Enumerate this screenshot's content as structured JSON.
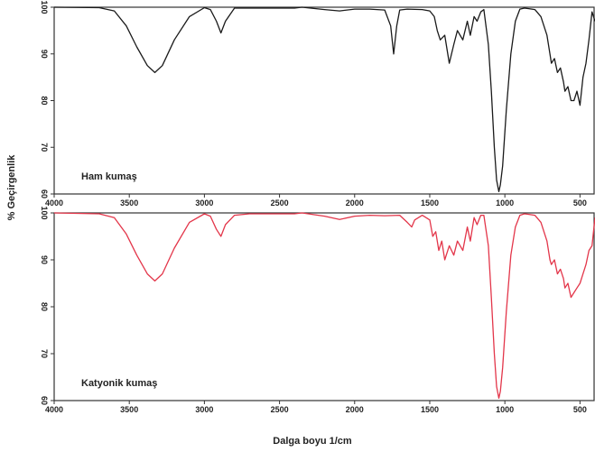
{
  "chart_data": [
    {
      "type": "line",
      "label": "Ham kumaş",
      "color": "#1a1a1a",
      "xlim": [
        4000,
        400
      ],
      "ylim": [
        60,
        100
      ],
      "x_ticks": [
        4000,
        3500,
        3000,
        2500,
        2000,
        1500,
        1000,
        500
      ],
      "y_ticks": [
        60,
        70,
        80,
        90,
        100
      ],
      "x": [
        4000,
        3700,
        3600,
        3520,
        3450,
        3380,
        3330,
        3280,
        3200,
        3100,
        3000,
        2960,
        2920,
        2890,
        2860,
        2800,
        2700,
        2400,
        2350,
        2200,
        2100,
        2000,
        1900,
        1800,
        1760,
        1740,
        1720,
        1700,
        1650,
        1550,
        1500,
        1470,
        1450,
        1430,
        1400,
        1370,
        1340,
        1316,
        1280,
        1250,
        1230,
        1205,
        1185,
        1160,
        1140,
        1110,
        1090,
        1070,
        1055,
        1040,
        1030,
        1015,
        990,
        960,
        930,
        900,
        870,
        840,
        800,
        760,
        720,
        700,
        690,
        670,
        650,
        630,
        610,
        600,
        580,
        560,
        540,
        520,
        500,
        480,
        460,
        440,
        420,
        400
      ],
      "y": [
        100,
        99.9,
        99.2,
        96,
        91.5,
        87.5,
        86,
        87.5,
        93,
        98,
        99.9,
        99.5,
        97,
        94.5,
        97,
        99.8,
        99.8,
        99.8,
        100,
        99.5,
        99.2,
        99.6,
        99.6,
        99.4,
        96,
        90,
        96,
        99.4,
        99.6,
        99.5,
        99.2,
        98,
        95,
        93,
        94,
        88,
        92,
        95,
        93,
        97,
        94,
        98,
        97,
        99,
        99.5,
        92,
        82,
        70,
        63,
        60.5,
        62,
        66,
        78,
        90,
        97,
        99.6,
        99.8,
        99.7,
        99.5,
        98,
        94,
        90,
        88,
        89,
        86,
        87,
        84,
        82,
        83,
        80,
        80,
        82,
        79,
        85,
        88,
        93,
        99,
        97
      ]
    },
    {
      "type": "line",
      "label": "Katyonik kumaş",
      "color": "#e3364a",
      "xlim": [
        4000,
        400
      ],
      "ylim": [
        60,
        100
      ],
      "x_ticks": [
        4000,
        3500,
        3000,
        2500,
        2000,
        1500,
        1000,
        500
      ],
      "y_ticks": [
        60,
        70,
        80,
        90,
        100
      ],
      "x": [
        4000,
        3700,
        3600,
        3520,
        3450,
        3380,
        3330,
        3280,
        3200,
        3100,
        3000,
        2960,
        2920,
        2890,
        2860,
        2800,
        2700,
        2400,
        2350,
        2200,
        2100,
        2000,
        1900,
        1800,
        1700,
        1650,
        1620,
        1600,
        1550,
        1500,
        1480,
        1460,
        1440,
        1420,
        1400,
        1370,
        1340,
        1316,
        1280,
        1250,
        1230,
        1205,
        1185,
        1160,
        1140,
        1110,
        1090,
        1070,
        1055,
        1040,
        1030,
        1015,
        990,
        960,
        930,
        900,
        870,
        840,
        800,
        760,
        720,
        700,
        690,
        670,
        650,
        630,
        610,
        600,
        580,
        560,
        540,
        520,
        500,
        480,
        460,
        440,
        420,
        400
      ],
      "y": [
        100,
        99.8,
        99,
        95.5,
        91,
        87,
        85.5,
        87,
        92.5,
        98,
        99.8,
        99.3,
        96.5,
        95,
        97.5,
        99.5,
        99.8,
        99.8,
        100,
        99.3,
        98.6,
        99.3,
        99.5,
        99.4,
        99.5,
        98,
        97,
        98.5,
        99.5,
        98.5,
        95,
        96,
        92,
        94,
        90,
        93,
        91,
        94,
        92,
        97,
        94,
        99,
        97.5,
        99.5,
        99.5,
        93,
        82,
        70,
        63,
        60.5,
        62,
        67,
        79,
        91,
        97,
        99.5,
        99.8,
        99.7,
        99.5,
        98,
        94,
        90,
        89,
        90,
        87,
        88,
        86,
        84,
        85,
        82,
        83,
        84,
        85,
        87,
        89,
        92,
        93,
        99
      ]
    }
  ],
  "axes": {
    "ylabel": "% Geçirgenlik",
    "xlabel": "Dalga boyu 1/cm"
  }
}
